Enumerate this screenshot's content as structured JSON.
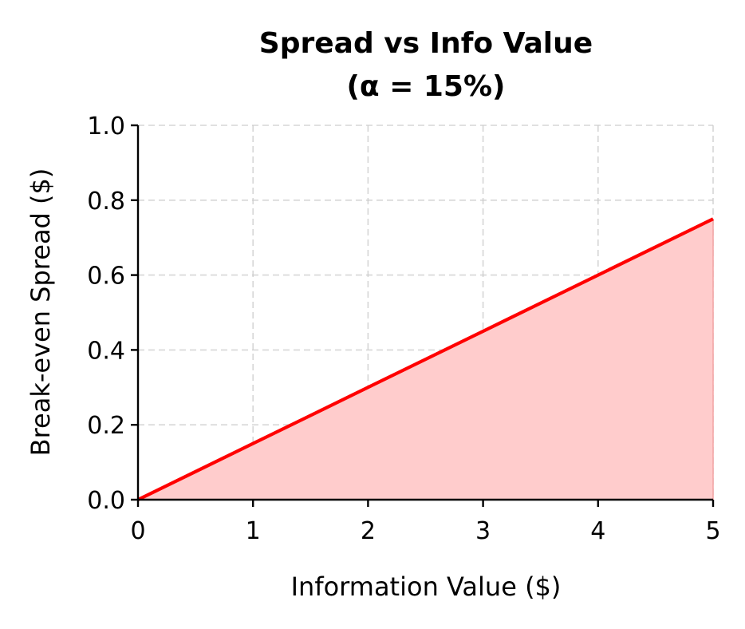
{
  "chart_data": {
    "type": "line",
    "title": "Spread vs Info Value",
    "subtitle": "(α = 15%)",
    "xlabel": "Information Value ($)",
    "ylabel": "Break-even Spread ($)",
    "xlim": [
      0,
      5
    ],
    "ylim": [
      0,
      1.0
    ],
    "x_ticks": [
      "0",
      "1",
      "2",
      "3",
      "4",
      "5"
    ],
    "y_ticks": [
      "0.0",
      "0.2",
      "0.4",
      "0.6",
      "0.8",
      "1.0"
    ],
    "grid": true,
    "series": [
      {
        "color": "#ff0000",
        "fill_color": "#ffcccc",
        "filled_area": true,
        "x": [
          0,
          1,
          2,
          3,
          4,
          5
        ],
        "y": [
          0,
          0.15,
          0.3,
          0.45,
          0.6,
          0.75
        ]
      }
    ]
  }
}
